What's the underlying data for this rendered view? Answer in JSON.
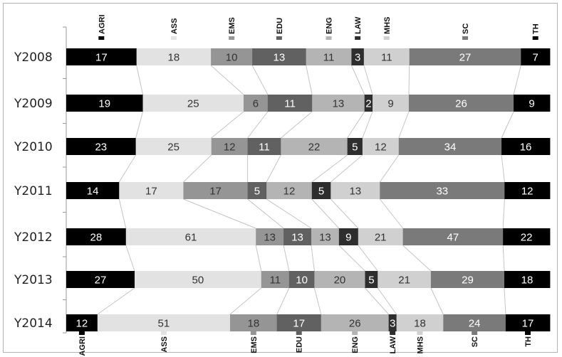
{
  "chart_data": {
    "type": "bar",
    "orientation": "horizontal-stacked",
    "title": "",
    "xlabel": "",
    "ylabel": "",
    "categories": [
      "Y2008",
      "Y2009",
      "Y2010",
      "Y2011",
      "Y2012",
      "Y2013",
      "Y2014"
    ],
    "series": [
      {
        "name": "AGRI",
        "values": [
          17,
          19,
          23,
          14,
          28,
          27,
          12
        ],
        "color": "#000000"
      },
      {
        "name": "ASS",
        "values": [
          18,
          25,
          25,
          17,
          61,
          50,
          51
        ],
        "color": "#e2e2e2"
      },
      {
        "name": "EMS",
        "values": [
          10,
          6,
          12,
          17,
          13,
          11,
          18
        ],
        "color": "#959595"
      },
      {
        "name": "EDU",
        "values": [
          13,
          11,
          11,
          5,
          13,
          10,
          17
        ],
        "color": "#616161"
      },
      {
        "name": "ENG",
        "values": [
          11,
          13,
          22,
          12,
          13,
          20,
          26
        ],
        "color": "#b4b4b4"
      },
      {
        "name": "LAW",
        "values": [
          3,
          2,
          5,
          5,
          9,
          5,
          3
        ],
        "color": "#2e2e2e"
      },
      {
        "name": "MHS",
        "values": [
          11,
          9,
          12,
          13,
          21,
          21,
          18
        ],
        "color": "#d0d0d0"
      },
      {
        "name": "SC",
        "values": [
          27,
          26,
          34,
          33,
          47,
          29,
          24
        ],
        "color": "#7a7a7a"
      },
      {
        "name": "TH",
        "values": [
          7,
          9,
          16,
          12,
          22,
          18,
          17
        ],
        "color": "#000000"
      }
    ],
    "data_labels": true,
    "connectors": true,
    "legend": "column labels at top and bottom"
  }
}
